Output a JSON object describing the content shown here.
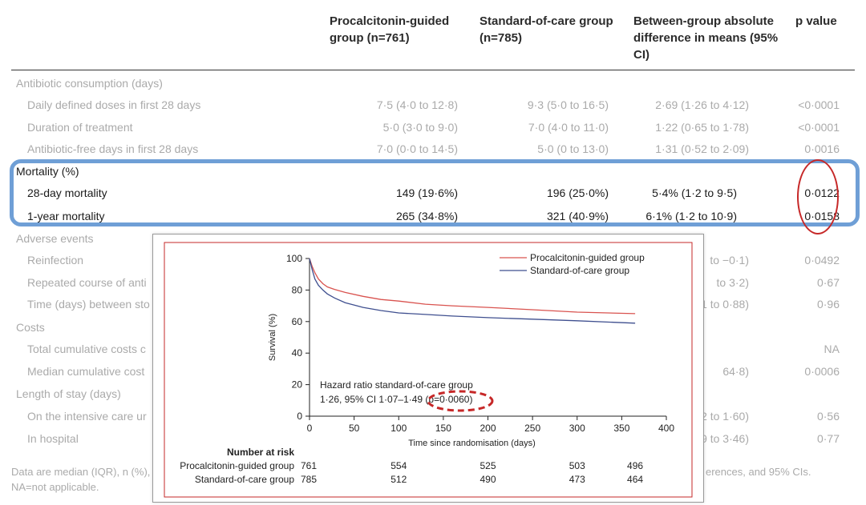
{
  "table": {
    "headers": [
      "Procalcitonin-guided group (n=761)",
      "Standard-of-care group (n=785)",
      "Between-group absolute difference in means (95% CI)",
      "p value"
    ],
    "rows": [
      {
        "label": "Antibiotic consumption (days)",
        "section": true
      },
      {
        "label": "Daily defined doses in first 28 days",
        "pct": "7·5 (4·0 to 12·8)",
        "soc": "9·3 (5·0 to 16·5)",
        "diff": "2·69 (1·26 to 4·12)",
        "p": "<0·0001"
      },
      {
        "label": "Duration of treatment",
        "pct": "5·0 (3·0 to 9·0)",
        "soc": "7·0 (4·0 to 11·0)",
        "diff": "1·22 (0·65 to 1·78)",
        "p": "<0·0001"
      },
      {
        "label": "Antibiotic-free days in first 28 days",
        "pct": "7·0 (0·0 to 14·5)",
        "soc": "5·0 (0 to 13·0)",
        "diff": "1·31 (0·52 to 2·09)",
        "p": "0·0016"
      },
      {
        "label": "Mortality (%)",
        "section": true
      },
      {
        "label": "28-day mortality",
        "pct": "149 (19·6%)",
        "soc": "196 (25·0%)",
        "diff": "5·4% (1·2 to 9·5)",
        "p": "0·0122"
      },
      {
        "label": "1-year mortality",
        "pct": "265 (34·8%)",
        "soc": "321 (40·9%)",
        "diff": "6·1% (1·2 to 10·9)",
        "p": "0·0158"
      },
      {
        "label": "Adverse events",
        "section": true
      },
      {
        "label": "Reinfection",
        "diff": "to −0·1)",
        "p": "0·0492"
      },
      {
        "label": "Repeated course of anti",
        "diff": "to 3·2)",
        "p": "0·67"
      },
      {
        "label": "Time (days) between sto",
        "diff": "1 to 0·88)",
        "p": "0·96"
      },
      {
        "label": "Costs",
        "section": true
      },
      {
        "label": "Total cumulative costs c",
        "p": "NA"
      },
      {
        "label": "Median cumulative cost",
        "diff": "64·8)",
        "p": "0·0006"
      },
      {
        "label": "Length of stay (days)",
        "section": true
      },
      {
        "label": "On the intensive care ur",
        "diff": "2 to 1·60)",
        "p": "0·56"
      },
      {
        "label": "In hospital",
        "diff": "9 to 3·46)",
        "p": "0·77"
      }
    ],
    "footnote_line1": "Data are median (IQR), n (%),",
    "footnote_line1_right": "erences, and 95% CIs.",
    "footnote_line2": "NA=not applicable."
  },
  "chart_data": {
    "type": "line",
    "xlabel": "Time since randomisation (days)",
    "ylabel": "Survival (%)",
    "xlim": [
      0,
      400
    ],
    "ylim": [
      0,
      100
    ],
    "xticks": [
      0,
      50,
      100,
      150,
      200,
      250,
      300,
      350,
      400
    ],
    "yticks": [
      0,
      20,
      40,
      60,
      80,
      100
    ],
    "legend_position": "top-right",
    "series": [
      {
        "name": "Procalcitonin-guided group",
        "color": "#d9534f",
        "x": [
          0,
          3,
          6,
          10,
          15,
          20,
          28,
          40,
          60,
          80,
          100,
          130,
          160,
          200,
          250,
          300,
          365
        ],
        "y": [
          100,
          95,
          91,
          87,
          84,
          82,
          80.4,
          78.5,
          76,
          74,
          73,
          71,
          70,
          69,
          67.5,
          66,
          65
        ]
      },
      {
        "name": "Standard-of-care group",
        "color": "#3f4f8f",
        "x": [
          0,
          3,
          6,
          10,
          15,
          20,
          28,
          40,
          60,
          80,
          100,
          130,
          160,
          200,
          250,
          300,
          365
        ],
        "y": [
          100,
          93,
          87,
          83,
          80,
          77.5,
          75,
          72,
          69,
          67,
          65.5,
          64.5,
          63.5,
          62.5,
          61.5,
          60.5,
          59
        ]
      }
    ],
    "annotation_line1": "Hazard ratio standard-of-care group",
    "annotation_line2": "1·26, 95% CI 1·07–1·49 (p=0·0060)",
    "risk_table": {
      "title": "Number at risk",
      "rows": [
        {
          "label": "Procalcitonin-guided group",
          "values": [
            "761",
            "554",
            "525",
            "503",
            "496"
          ]
        },
        {
          "label": "Standard-of-care group",
          "values": [
            "785",
            "512",
            "490",
            "473",
            "464"
          ]
        }
      ],
      "days": [
        0,
        100,
        200,
        300,
        365
      ]
    }
  },
  "colors": {
    "highlight_box": "#6f9fd6",
    "circle": "#c62828"
  }
}
